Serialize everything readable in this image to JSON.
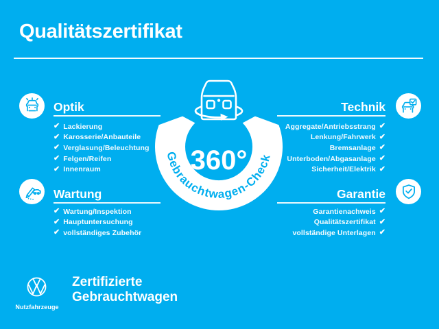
{
  "colors": {
    "background": "#00AEEF",
    "foreground": "#FFFFFF"
  },
  "header": {
    "title": "Qualitätszertifikat"
  },
  "center": {
    "value": "360°",
    "ring_label": "Gebrauchtwagen-Check",
    "icon": "rotating-car-icon"
  },
  "check_glyph": "✔",
  "sections": [
    {
      "id": "optik",
      "title": "Optik",
      "icon": "car-shine-icon",
      "side": "left",
      "items": [
        "Lackierung",
        "Karosserie/Anbauteile",
        "Verglasung/Beleuchtung",
        "Felgen/Reifen",
        "Innenraum"
      ]
    },
    {
      "id": "technik",
      "title": "Technik",
      "icon": "car-checklist-icon",
      "side": "right",
      "items": [
        "Aggregate/Antriebsstrang",
        "Lenkung/Fahrwerk",
        "Bremsanlage",
        "Unterboden/Abgasanlage",
        "Sicherheit/Elektrik"
      ]
    },
    {
      "id": "wartung",
      "title": "Wartung",
      "icon": "service-pen-car-icon",
      "side": "left",
      "items": [
        "Wartung/Inspektion",
        "Hauptuntersuchung",
        "vollständiges Zubehör"
      ]
    },
    {
      "id": "garantie",
      "title": "Garantie",
      "icon": "shield-check-icon",
      "side": "right",
      "items": [
        "Garantienachweis",
        "Qualitätszertifikat",
        "vollständige Unterlagen"
      ]
    }
  ],
  "footer": {
    "brand": "Nutzfahrzeuge",
    "label_line1": "Zertifizierte",
    "label_line2": "Gebrauchtwagen"
  }
}
